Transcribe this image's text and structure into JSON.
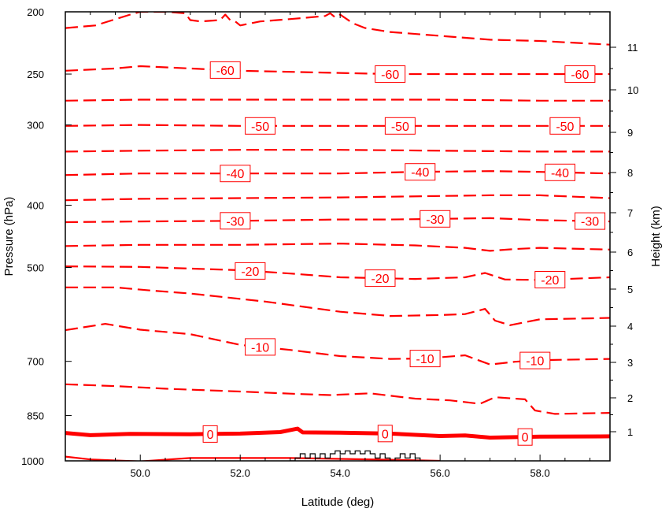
{
  "chart_data": {
    "type": "contour",
    "xlabel": "Latitude (deg)",
    "ylabel_left": "Pressure (hPa)",
    "ylabel_right": "Height (km)",
    "xlim": [
      48.5,
      59.4
    ],
    "x_ticks": [
      {
        "value": 50.0,
        "label": "50.0"
      },
      {
        "value": 52.0,
        "label": "52.0"
      },
      {
        "value": 54.0,
        "label": "54.0"
      },
      {
        "value": 56.0,
        "label": "56.0"
      },
      {
        "value": 58.0,
        "label": "58.0"
      }
    ],
    "pressure_ticks": [
      {
        "value": 200,
        "label": "200"
      },
      {
        "value": 250,
        "label": "250"
      },
      {
        "value": 300,
        "label": "300"
      },
      {
        "value": 400,
        "label": "400"
      },
      {
        "value": 500,
        "label": "500"
      },
      {
        "value": 700,
        "label": "700"
      },
      {
        "value": 850,
        "label": "850"
      },
      {
        "value": 1000,
        "label": "1000"
      }
    ],
    "height_ticks": [
      {
        "value": 1,
        "label": "1"
      },
      {
        "value": 2,
        "label": "2"
      },
      {
        "value": 3,
        "label": "3"
      },
      {
        "value": 4,
        "label": "4"
      },
      {
        "value": 5,
        "label": "5"
      },
      {
        "value": 6,
        "label": "6"
      },
      {
        "value": 7,
        "label": "7"
      },
      {
        "value": 8,
        "label": "8"
      },
      {
        "value": 9,
        "label": "9"
      },
      {
        "value": 10,
        "label": "10"
      },
      {
        "value": 11,
        "label": "11"
      }
    ],
    "contour_color": "#ff0000",
    "terrain_color": "#000000",
    "contours": [
      {
        "level": -65,
        "labeled": false,
        "style": "dashed",
        "points": [
          [
            48.5,
            212
          ],
          [
            49.1,
            210
          ],
          [
            49.8,
            202
          ],
          [
            50.0,
            200
          ],
          [
            50.5,
            200
          ],
          [
            50.9,
            201
          ],
          [
            51.0,
            206
          ],
          [
            51.2,
            207
          ],
          [
            51.6,
            206
          ],
          [
            51.7,
            202
          ],
          [
            51.8,
            206
          ],
          [
            51.9,
            207
          ],
          [
            52.0,
            210
          ],
          [
            52.4,
            207
          ],
          [
            53.1,
            205
          ],
          [
            53.4,
            204
          ],
          [
            53.7,
            203
          ],
          [
            53.8,
            201
          ],
          [
            53.9,
            204
          ],
          [
            54.0,
            202
          ],
          [
            54.2,
            207
          ],
          [
            54.3,
            209
          ],
          [
            54.5,
            212
          ],
          [
            55.0,
            215
          ],
          [
            56.0,
            218
          ],
          [
            57.0,
            221
          ],
          [
            58.0,
            222
          ],
          [
            59.4,
            225
          ]
        ],
        "labels": []
      },
      {
        "level": -60,
        "labeled": true,
        "style": "dashed",
        "points": [
          [
            48.5,
            247
          ],
          [
            49.5,
            245
          ],
          [
            50.0,
            243
          ],
          [
            51.0,
            245
          ],
          [
            52.0,
            247
          ],
          [
            53.0,
            248
          ],
          [
            54.0,
            249
          ],
          [
            55.0,
            250
          ],
          [
            56.0,
            250
          ],
          [
            57.0,
            250
          ],
          [
            58.0,
            250
          ],
          [
            59.4,
            250
          ]
        ],
        "labels": [
          {
            "x": 51.7,
            "text": "-60"
          },
          {
            "x": 55.0,
            "text": "-60"
          },
          {
            "x": 58.8,
            "text": "-60"
          }
        ]
      },
      {
        "level": -55,
        "labeled": false,
        "style": "dashed",
        "points": [
          [
            48.5,
            275
          ],
          [
            50.0,
            274
          ],
          [
            52.0,
            274
          ],
          [
            54.0,
            274
          ],
          [
            56.0,
            274
          ],
          [
            58.0,
            275
          ],
          [
            59.4,
            275
          ]
        ],
        "labels": []
      },
      {
        "level": -50,
        "labeled": true,
        "style": "dashed",
        "points": [
          [
            48.5,
            301
          ],
          [
            50.0,
            300
          ],
          [
            52.0,
            301
          ],
          [
            54.0,
            301
          ],
          [
            56.0,
            301
          ],
          [
            58.0,
            301
          ],
          [
            59.4,
            301
          ]
        ],
        "labels": [
          {
            "x": 52.4,
            "text": "-50"
          },
          {
            "x": 55.2,
            "text": "-50"
          },
          {
            "x": 58.5,
            "text": "-50"
          }
        ]
      },
      {
        "level": -45,
        "labeled": false,
        "style": "dashed",
        "points": [
          [
            48.5,
            330
          ],
          [
            50.0,
            329
          ],
          [
            52.0,
            328
          ],
          [
            54.0,
            328
          ],
          [
            56.0,
            329
          ],
          [
            58.0,
            330
          ],
          [
            59.4,
            330
          ]
        ],
        "labels": []
      },
      {
        "level": -40,
        "labeled": true,
        "style": "dashed",
        "points": [
          [
            48.5,
            359
          ],
          [
            50.0,
            357
          ],
          [
            52.0,
            357
          ],
          [
            54.0,
            357
          ],
          [
            55.5,
            355
          ],
          [
            57.0,
            354
          ],
          [
            58.0,
            355
          ],
          [
            59.4,
            357
          ]
        ],
        "labels": [
          {
            "x": 51.9,
            "text": "-40"
          },
          {
            "x": 55.6,
            "text": "-40"
          },
          {
            "x": 58.4,
            "text": "-40"
          }
        ]
      },
      {
        "level": -35,
        "labeled": false,
        "style": "dashed",
        "points": [
          [
            48.5,
            393
          ],
          [
            50.0,
            391
          ],
          [
            52.0,
            390
          ],
          [
            54.0,
            389
          ],
          [
            56.0,
            387
          ],
          [
            57.0,
            386
          ],
          [
            58.0,
            386
          ],
          [
            59.4,
            390
          ]
        ],
        "labels": []
      },
      {
        "level": -30,
        "labeled": true,
        "style": "dashed",
        "points": [
          [
            48.5,
            425
          ],
          [
            50.0,
            424
          ],
          [
            52.0,
            423
          ],
          [
            54.0,
            421
          ],
          [
            55.0,
            421
          ],
          [
            56.0,
            420
          ],
          [
            57.0,
            419
          ],
          [
            58.0,
            422
          ],
          [
            59.4,
            424
          ]
        ],
        "labels": [
          {
            "x": 51.9,
            "text": "-30"
          },
          {
            "x": 55.9,
            "text": "-30"
          },
          {
            "x": 59.0,
            "text": "-30"
          }
        ]
      },
      {
        "level": -25,
        "labeled": false,
        "style": "dashed",
        "points": [
          [
            48.5,
            463
          ],
          [
            50.0,
            461
          ],
          [
            52.0,
            461
          ],
          [
            54.0,
            459
          ],
          [
            55.5,
            462
          ],
          [
            56.5,
            466
          ],
          [
            57.0,
            471
          ],
          [
            57.5,
            468
          ],
          [
            58.0,
            466
          ],
          [
            59.4,
            469
          ]
        ],
        "labels": []
      },
      {
        "level": -20,
        "labeled": true,
        "style": "dashed",
        "points": [
          [
            48.5,
            498
          ],
          [
            50.0,
            499
          ],
          [
            52.0,
            505
          ],
          [
            53.0,
            511
          ],
          [
            54.0,
            518
          ],
          [
            55.5,
            521
          ],
          [
            56.5,
            518
          ],
          [
            56.9,
            510
          ],
          [
            57.3,
            522
          ],
          [
            58.0,
            523
          ],
          [
            59.4,
            518
          ]
        ],
        "labels": [
          {
            "x": 52.2,
            "text": "-20"
          },
          {
            "x": 54.8,
            "text": "-20"
          },
          {
            "x": 58.2,
            "text": "-20"
          }
        ]
      },
      {
        "level": -15,
        "labeled": false,
        "style": "dashed",
        "points": [
          [
            48.5,
            537
          ],
          [
            49.5,
            537
          ],
          [
            50.2,
            543
          ],
          [
            51.0,
            549
          ],
          [
            52.5,
            565
          ],
          [
            54.0,
            586
          ],
          [
            55.0,
            595
          ],
          [
            56.0,
            593
          ],
          [
            56.5,
            591
          ],
          [
            56.9,
            580
          ],
          [
            57.1,
            605
          ],
          [
            57.4,
            615
          ],
          [
            58.0,
            602
          ],
          [
            59.0,
            600
          ],
          [
            59.4,
            599
          ]
        ],
        "labels": []
      },
      {
        "level": -10,
        "labeled": true,
        "style": "dashed",
        "points": [
          [
            48.5,
            626
          ],
          [
            49.3,
            612
          ],
          [
            50.0,
            625
          ],
          [
            51.0,
            635
          ],
          [
            52.0,
            660
          ],
          [
            53.0,
            672
          ],
          [
            54.0,
            687
          ],
          [
            55.0,
            694
          ],
          [
            55.7,
            693
          ],
          [
            56.5,
            685
          ],
          [
            57.0,
            708
          ],
          [
            57.5,
            701
          ],
          [
            58.0,
            697
          ],
          [
            59.4,
            694
          ]
        ],
        "labels": [
          {
            "x": 52.4,
            "text": "-10"
          },
          {
            "x": 55.7,
            "text": "-10"
          },
          {
            "x": 57.9,
            "text": "-10"
          }
        ]
      },
      {
        "level": -5,
        "labeled": false,
        "style": "dashed",
        "points": [
          [
            48.5,
            760
          ],
          [
            49.5,
            765
          ],
          [
            50.5,
            772
          ],
          [
            52.0,
            780
          ],
          [
            53.0,
            786
          ],
          [
            53.8,
            790
          ],
          [
            54.6,
            785
          ],
          [
            55.5,
            800
          ],
          [
            56.2,
            805
          ],
          [
            56.8,
            815
          ],
          [
            57.1,
            796
          ],
          [
            57.7,
            802
          ],
          [
            57.9,
            835
          ],
          [
            58.3,
            845
          ],
          [
            59.4,
            842
          ]
        ],
        "labels": []
      },
      {
        "level": 0,
        "labeled": true,
        "style": "bold",
        "points": [
          [
            48.5,
            905
          ],
          [
            49.0,
            912
          ],
          [
            49.8,
            908
          ],
          [
            51.0,
            909
          ],
          [
            52.0,
            907
          ],
          [
            52.8,
            902
          ],
          [
            53.15,
            891
          ],
          [
            53.25,
            903
          ],
          [
            54.0,
            904
          ],
          [
            55.0,
            907
          ],
          [
            56.0,
            915
          ],
          [
            56.5,
            913
          ],
          [
            57.0,
            920
          ],
          [
            58.0,
            917
          ],
          [
            59.4,
            916
          ]
        ],
        "labels": [
          {
            "x": 51.4,
            "text": "0"
          },
          {
            "x": 54.9,
            "text": "0"
          },
          {
            "x": 57.7,
            "text": "0"
          }
        ]
      },
      {
        "level": 5,
        "labeled": false,
        "style": "solid",
        "points": [
          [
            48.5,
            985
          ],
          [
            49.0,
            995
          ],
          [
            50.0,
            1002
          ],
          [
            51.0,
            990
          ],
          [
            52.0,
            990
          ],
          [
            53.0,
            990
          ],
          [
            54.0,
            993
          ],
          [
            55.0,
            996
          ],
          [
            56.0,
            1000
          ]
        ],
        "labels": []
      }
    ],
    "terrain_lat": [
      53.0,
      53.1,
      53.1,
      53.2,
      53.2,
      53.3,
      53.3,
      53.4,
      53.4,
      53.5,
      53.5,
      53.6,
      53.6,
      53.7,
      53.7,
      53.8,
      53.8,
      53.9,
      53.9,
      54.0,
      54.0,
      54.1,
      54.1,
      54.2,
      54.2,
      54.3,
      54.3,
      54.4,
      54.4,
      54.5,
      54.5,
      54.6,
      54.6,
      54.7,
      54.7,
      54.8,
      54.8,
      54.9,
      54.9,
      55.0,
      55.0,
      55.1,
      55.1,
      55.2,
      55.2,
      55.3,
      55.3,
      55.4,
      55.4,
      55.5,
      55.5,
      55.6,
      55.6,
      55.7
    ],
    "terrain_p": [
      1000,
      1000,
      990,
      990,
      975,
      975,
      990,
      990,
      975,
      975,
      990,
      990,
      975,
      975,
      990,
      990,
      975,
      975,
      965,
      965,
      975,
      975,
      965,
      965,
      975,
      975,
      965,
      965,
      975,
      975,
      965,
      965,
      975,
      975,
      990,
      990,
      975,
      975,
      990,
      990,
      1000,
      1000,
      990,
      990,
      975,
      975,
      990,
      990,
      975,
      975,
      990,
      990,
      1000,
      1000
    ]
  }
}
